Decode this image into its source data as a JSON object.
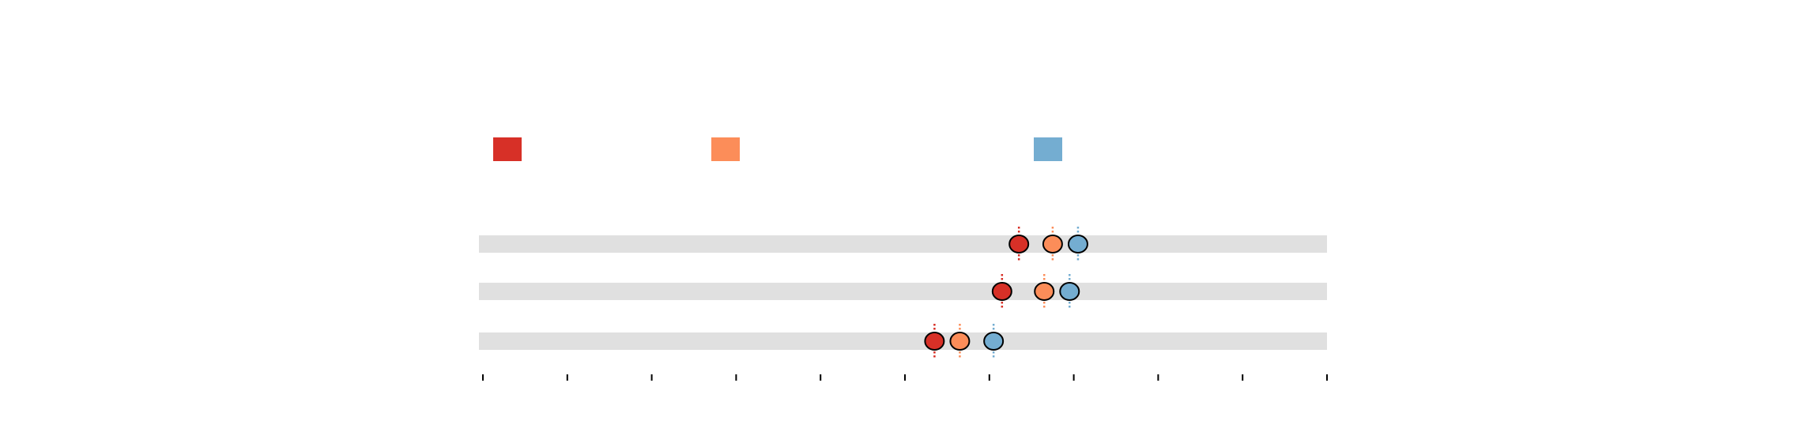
{
  "chart_data": {
    "type": "dot",
    "title": "",
    "xlabel": "",
    "ylabel": "",
    "xlim": [
      0,
      10
    ],
    "xticks": [
      0,
      1,
      2,
      3,
      4,
      5,
      6,
      7,
      8,
      9,
      10
    ],
    "tick_labels_visible": false,
    "grid": false,
    "legend": "top-left",
    "categories": [
      "",
      "",
      ""
    ],
    "series": [
      {
        "color": "#d73027",
        "values": [
          6.35,
          6.15,
          5.35
        ]
      },
      {
        "color": "#fc8d59",
        "values": [
          6.75,
          6.65,
          5.65
        ]
      },
      {
        "color": "#74add1",
        "values": [
          7.05,
          6.95,
          6.05
        ]
      }
    ],
    "error_style": "dotted vertical line through each point"
  }
}
